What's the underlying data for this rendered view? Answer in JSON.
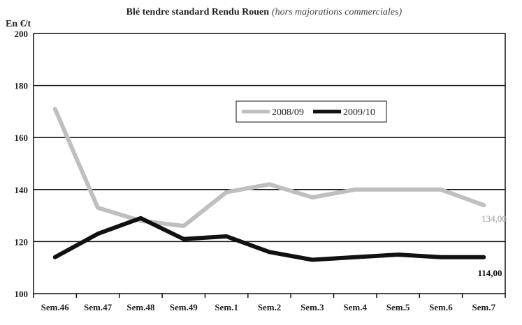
{
  "chart_data": {
    "type": "line",
    "title": "Blé tendre standard Rendu Rouen",
    "subtitle": "(hors majorations commerciales)",
    "ylabel": "En €/t",
    "xlabel": "",
    "ylim": [
      100,
      200
    ],
    "yticks": [
      100,
      120,
      140,
      160,
      180,
      200
    ],
    "categories": [
      "Sem.46",
      "Sem.47",
      "Sem.48",
      "Sem.49",
      "Sem.1",
      "Sem.2",
      "Sem.3",
      "Sem.4",
      "Sem.5",
      "Sem.6",
      "Sem.7"
    ],
    "grid": "horizontal",
    "legend_position": "top-right",
    "series": [
      {
        "name": "2008/09",
        "color": "#bfbfbf",
        "values": [
          171,
          133,
          128,
          126,
          139,
          142,
          137,
          140,
          140,
          140,
          134
        ],
        "end_label": "134,00"
      },
      {
        "name": "2009/10",
        "color": "#111111",
        "values": [
          114,
          123,
          129,
          121,
          122,
          116,
          113,
          114,
          115,
          114,
          114
        ],
        "end_label": "114,00"
      }
    ]
  }
}
